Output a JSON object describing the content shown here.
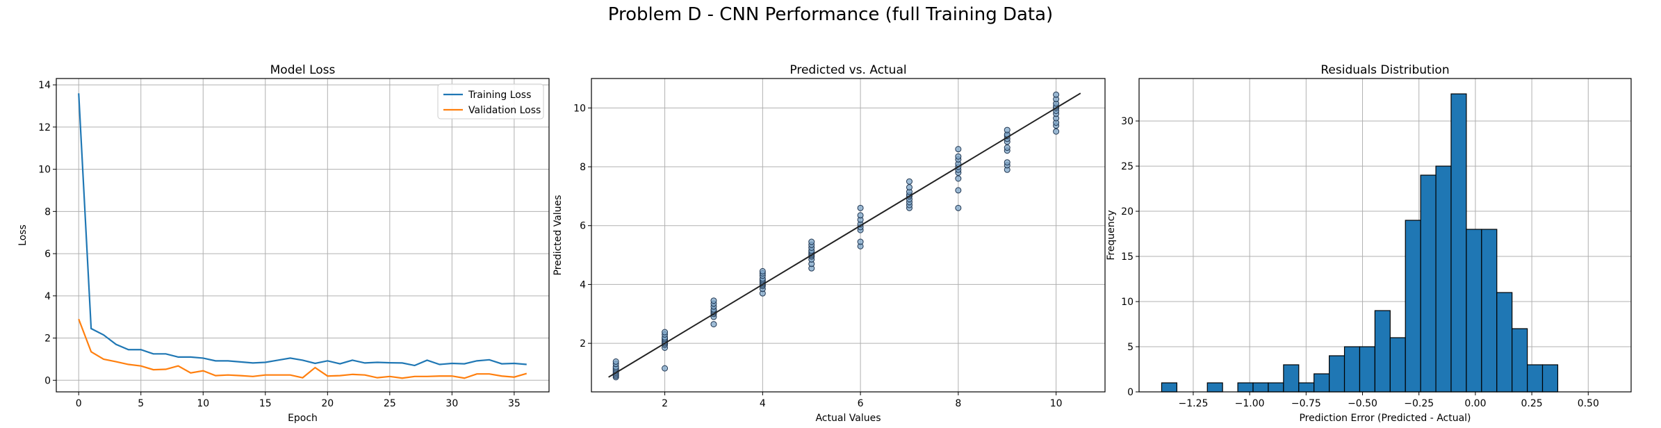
{
  "suptitle": "Problem D - CNN Performance (full Training Data)",
  "colors": {
    "training": "#1f77b4",
    "validation": "#ff7f0e",
    "scatter_face": "#7fa7c9",
    "scatter_edge": "#1f3550",
    "hist_face": "#1f77b4",
    "grid": "#b0b0b0"
  },
  "chart_data": [
    {
      "type": "line",
      "title": "Model Loss",
      "xlabel": "Epoch",
      "ylabel": "Loss",
      "xlim": [
        -1.8,
        37.8
      ],
      "ylim": [
        -0.55,
        14.3
      ],
      "xticks": [
        0,
        5,
        10,
        15,
        20,
        25,
        30,
        35
      ],
      "yticks": [
        0,
        2,
        4,
        6,
        8,
        10,
        12,
        14
      ],
      "grid": true,
      "legend": "top-right",
      "x": [
        0,
        1,
        2,
        3,
        4,
        5,
        6,
        7,
        8,
        9,
        10,
        11,
        12,
        13,
        14,
        15,
        16,
        17,
        18,
        19,
        20,
        21,
        22,
        23,
        24,
        25,
        26,
        27,
        28,
        29,
        30,
        31,
        32,
        33,
        34,
        35,
        36
      ],
      "series": [
        {
          "name": "Training Loss",
          "color": "#1f77b4",
          "values": [
            13.6,
            2.45,
            2.15,
            1.7,
            1.45,
            1.45,
            1.25,
            1.25,
            1.1,
            1.1,
            1.05,
            0.92,
            0.92,
            0.87,
            0.82,
            0.85,
            0.95,
            1.05,
            0.95,
            0.8,
            0.92,
            0.78,
            0.95,
            0.82,
            0.85,
            0.83,
            0.82,
            0.7,
            0.95,
            0.75,
            0.8,
            0.78,
            0.92,
            0.97,
            0.78,
            0.8,
            0.75
          ]
        },
        {
          "name": "Validation Loss",
          "color": "#ff7f0e",
          "values": [
            2.9,
            1.35,
            1.0,
            0.88,
            0.75,
            0.68,
            0.5,
            0.52,
            0.68,
            0.35,
            0.45,
            0.22,
            0.25,
            0.22,
            0.18,
            0.25,
            0.25,
            0.25,
            0.12,
            0.6,
            0.2,
            0.22,
            0.28,
            0.25,
            0.12,
            0.18,
            0.1,
            0.18,
            0.18,
            0.2,
            0.2,
            0.1,
            0.3,
            0.3,
            0.2,
            0.15,
            0.32
          ]
        }
      ]
    },
    {
      "type": "scatter",
      "title": "Predicted vs. Actual",
      "xlabel": "Actual Values",
      "ylabel": "Predicted Values",
      "xlim": [
        0.5,
        11.0
      ],
      "ylim": [
        0.35,
        11.0
      ],
      "xticks": [
        2,
        4,
        6,
        8,
        10
      ],
      "yticks": [
        2,
        4,
        6,
        8,
        10
      ],
      "grid": true,
      "reference_line": {
        "x": [
          0.85,
          10.5
        ],
        "y": [
          0.85,
          10.5
        ]
      },
      "points": {
        "x": [
          1,
          1,
          1,
          1,
          1,
          1,
          1,
          1,
          1,
          1,
          2,
          2,
          2,
          2,
          2,
          2,
          2,
          2,
          2,
          2,
          3,
          3,
          3,
          3,
          3,
          3,
          3,
          3,
          3,
          4,
          4,
          4,
          4,
          4,
          4,
          4,
          4,
          4,
          4,
          4,
          5,
          5,
          5,
          5,
          5,
          5,
          5,
          5,
          5,
          5,
          5,
          6,
          6,
          6,
          6,
          6,
          6,
          6,
          6,
          7,
          7,
          7,
          7,
          7,
          7,
          7,
          7,
          7,
          8,
          8,
          8,
          8,
          8,
          8,
          8,
          8,
          8,
          8,
          9,
          9,
          9,
          9,
          9,
          9,
          9,
          9,
          9,
          9,
          10,
          10,
          10,
          10,
          10,
          10,
          10,
          10,
          10,
          10,
          10
        ],
        "y": [
          0.85,
          0.9,
          0.95,
          1.0,
          1.05,
          1.1,
          1.15,
          1.2,
          1.3,
          1.38,
          1.15,
          1.85,
          1.95,
          2.0,
          2.05,
          2.1,
          2.15,
          2.2,
          2.3,
          2.38,
          2.65,
          2.9,
          3.0,
          3.05,
          3.1,
          3.15,
          3.25,
          3.35,
          3.45,
          3.7,
          3.85,
          3.95,
          4.0,
          4.05,
          4.1,
          4.15,
          4.2,
          4.3,
          4.38,
          4.45,
          4.55,
          4.7,
          4.85,
          4.95,
          5.0,
          5.05,
          5.1,
          5.15,
          5.25,
          5.35,
          5.45,
          5.3,
          5.45,
          5.85,
          5.95,
          6.05,
          6.2,
          6.35,
          6.6,
          6.6,
          6.7,
          6.8,
          6.9,
          7.0,
          7.05,
          7.15,
          7.3,
          7.5,
          6.6,
          7.2,
          7.6,
          7.8,
          7.9,
          8.0,
          8.1,
          8.25,
          8.35,
          8.6,
          7.9,
          8.05,
          8.15,
          8.55,
          8.65,
          8.85,
          8.95,
          9.05,
          9.1,
          9.25,
          9.2,
          9.4,
          9.5,
          9.65,
          9.8,
          9.9,
          10.0,
          10.05,
          10.15,
          10.3,
          10.45
        ]
      }
    },
    {
      "type": "bar",
      "subtype": "histogram",
      "title": "Residuals Distribution",
      "xlabel": "Prediction Error (Predicted - Actual)",
      "ylabel": "Frequency",
      "xlim": [
        -1.49,
        0.69
      ],
      "ylim": [
        0,
        34.7
      ],
      "xticks": [
        -1.25,
        -1.0,
        -0.75,
        -0.5,
        -0.25,
        0.0,
        0.25,
        0.5
      ],
      "xtick_labels": [
        "−1.25",
        "−1.00",
        "−0.75",
        "−0.50",
        "−0.25",
        "0.00",
        "0.25",
        "0.50"
      ],
      "yticks": [
        0,
        5,
        10,
        15,
        20,
        25,
        30
      ],
      "grid": true,
      "bin_start": -1.39,
      "bin_width": 0.0675,
      "values": [
        1,
        0,
        0,
        1,
        0,
        1,
        1,
        1,
        3,
        1,
        2,
        4,
        5,
        5,
        9,
        6,
        19,
        24,
        25,
        33,
        18,
        18,
        11,
        7,
        3,
        3
      ]
    }
  ]
}
